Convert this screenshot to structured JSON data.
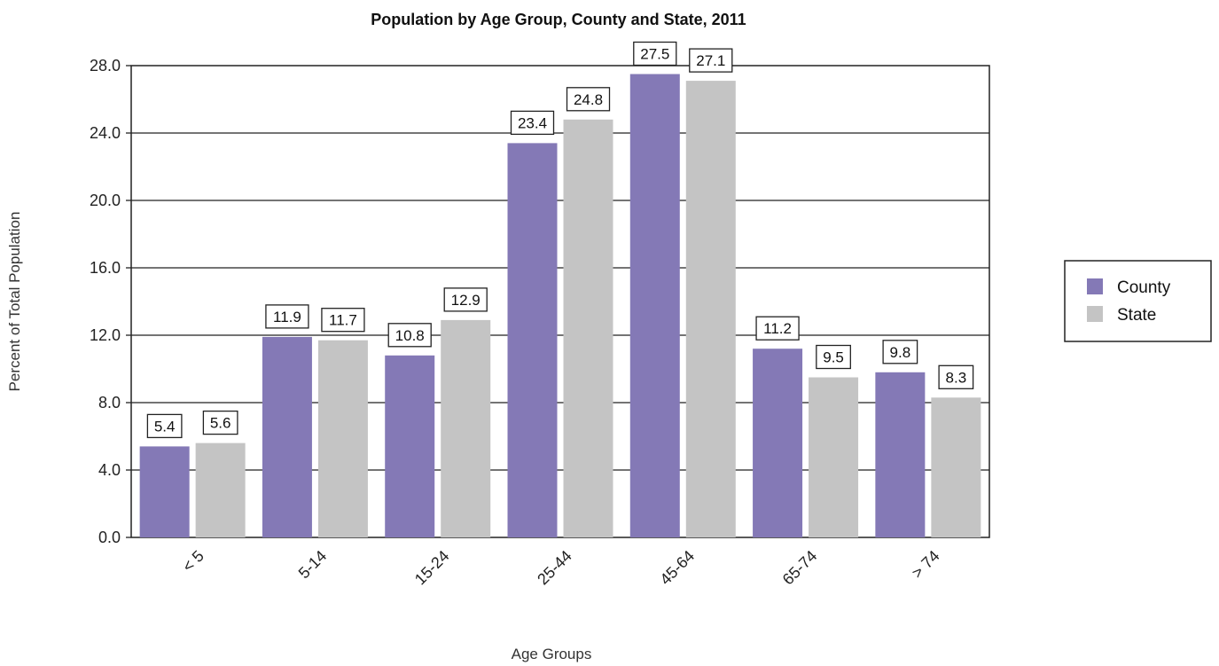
{
  "chart_data": {
    "type": "bar",
    "title": "Population by Age Group, County and State, 2011",
    "xlabel": "Age Groups",
    "ylabel": "Percent of Total Population",
    "categories": [
      "< 5",
      "5-14",
      "15-24",
      "25-44",
      "45-64",
      "65-74",
      "> 74"
    ],
    "series": [
      {
        "name": "County",
        "values": [
          5.4,
          11.9,
          10.8,
          23.4,
          27.5,
          11.2,
          9.8
        ],
        "color": "#8479b6"
      },
      {
        "name": "State",
        "values": [
          5.6,
          11.7,
          12.9,
          24.8,
          27.1,
          9.5,
          8.3
        ],
        "color": "#c4c4c4"
      }
    ],
    "ylim": [
      0,
      28
    ],
    "yticks": [
      "0.0",
      "4.0",
      "8.0",
      "12.0",
      "16.0",
      "20.0",
      "24.0",
      "28.0"
    ],
    "ytick_values": [
      0,
      4,
      8,
      12,
      16,
      20,
      24,
      28
    ],
    "grid": true,
    "legend_position": "right",
    "data_labels": true
  }
}
